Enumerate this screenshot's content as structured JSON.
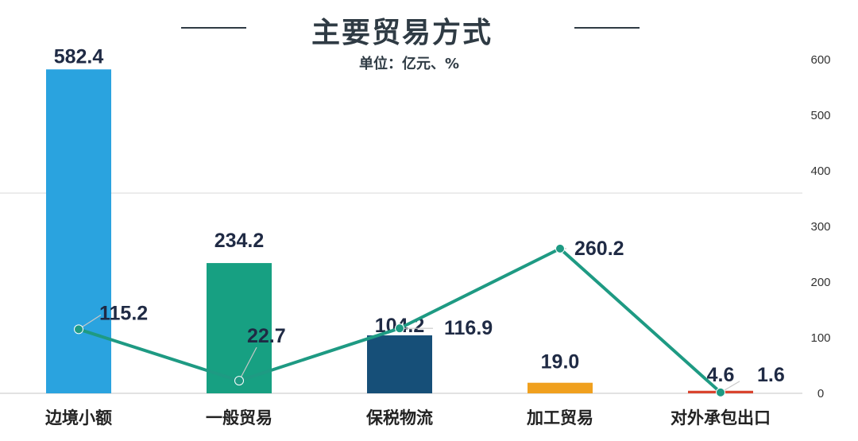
{
  "header": {
    "title": "主要贸易方式",
    "subtitle": "单位：亿元、%"
  },
  "colors": {
    "title": "#2f3b44",
    "line": "#1e9a83",
    "grid": "#d9d9d9"
  },
  "chart_data": {
    "type": "bar",
    "title": "主要贸易方式",
    "subtitle": "单位：亿元、%",
    "categories": [
      "边境小额",
      "一般贸易",
      "保税物流",
      "加工贸易",
      "对外承包出口"
    ],
    "series": [
      {
        "type": "bar",
        "values": [
          582.4,
          234.2,
          104.2,
          19.0,
          4.6
        ],
        "colors": [
          "#2aa3df",
          "#17a082",
          "#164f78",
          "#f0a01e",
          "#d9442f"
        ]
      },
      {
        "type": "line",
        "values": [
          115.2,
          22.7,
          116.9,
          260.2,
          1.6
        ],
        "color": "#1e9a83"
      }
    ],
    "y_axis_right": {
      "range": [
        0,
        600
      ],
      "ticks": [
        "0",
        "100",
        "200",
        "300",
        "400",
        "500",
        "600"
      ]
    },
    "value_labels": {
      "bars": [
        "582.4",
        "234.2",
        "104.2",
        "19.0",
        "4.6"
      ],
      "line": [
        "115.2",
        "22.7",
        "116.9",
        "260.2",
        "1.6"
      ]
    },
    "grid": "horizontal gridline at 360 only",
    "legend": "none"
  }
}
